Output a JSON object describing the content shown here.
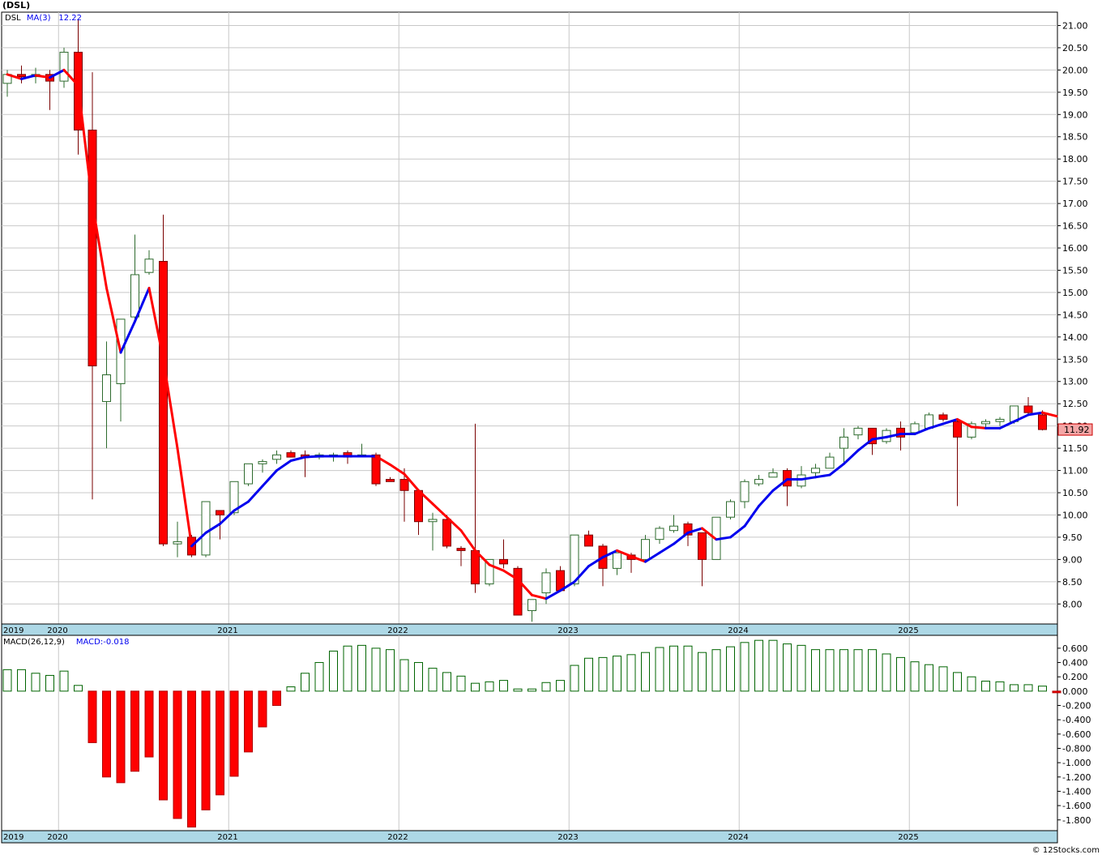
{
  "ticker": "(DSL)",
  "watermark": "© 12Stocks.com",
  "last_price_label": "11.92",
  "colors": {
    "up_body": "#ffffff",
    "up_outline": "#2e6b2e",
    "down_body": "#ff0000",
    "down_outline": "#7a0000",
    "ma_rising": "#0000ee",
    "ma_falling": "#ff0000",
    "axis_band": "#add8e6",
    "grid": "#c8c8c8",
    "macd_pos_outline": "#006400",
    "macd_neg": "#ff0000"
  },
  "chart_data": [
    {
      "type": "candlestick",
      "title": "DSL",
      "legend": [
        {
          "label": "DSL",
          "color": "#000000"
        },
        {
          "label": "MA(3)",
          "color": "#0000ee"
        },
        {
          "label": "12.22",
          "color": "#0000ee"
        }
      ],
      "year_labels": [
        "2019",
        "2020",
        "2021",
        "2022",
        "2023",
        "2024",
        "2025"
      ],
      "year_start_index": [
        -1,
        4,
        16,
        28,
        40,
        52,
        64
      ],
      "ylim": [
        7.55,
        21.3
      ],
      "y_ticks": [
        "21.00",
        "20.50",
        "20.00",
        "19.50",
        "19.00",
        "18.50",
        "18.00",
        "17.50",
        "17.00",
        "16.50",
        "16.00",
        "15.50",
        "15.00",
        "14.50",
        "14.00",
        "13.50",
        "13.00",
        "12.50",
        "12.00",
        "11.50",
        "11.00",
        "10.50",
        "10.00",
        "9.50",
        "9.00",
        "8.50",
        "8.00"
      ],
      "candles": [
        {
          "o": 19.7,
          "h": 20.0,
          "l": 19.4,
          "c": 19.9
        },
        {
          "o": 19.9,
          "h": 20.1,
          "l": 19.7,
          "c": 19.85
        },
        {
          "o": 19.85,
          "h": 20.05,
          "l": 19.7,
          "c": 19.9
        },
        {
          "o": 19.9,
          "h": 20.0,
          "l": 19.1,
          "c": 19.75
        },
        {
          "o": 19.75,
          "h": 20.5,
          "l": 19.6,
          "c": 20.4
        },
        {
          "o": 20.4,
          "h": 21.15,
          "l": 18.1,
          "c": 18.65
        },
        {
          "o": 18.65,
          "h": 19.95,
          "l": 10.35,
          "c": 13.35
        },
        {
          "o": 12.55,
          "h": 13.9,
          "l": 11.5,
          "c": 13.15
        },
        {
          "o": 12.95,
          "h": 14.4,
          "l": 12.1,
          "c": 14.4
        },
        {
          "o": 14.45,
          "h": 16.3,
          "l": 14.3,
          "c": 15.4
        },
        {
          "o": 15.45,
          "h": 15.95,
          "l": 15.4,
          "c": 15.75
        },
        {
          "o": 15.7,
          "h": 16.75,
          "l": 9.3,
          "c": 9.35
        },
        {
          "o": 9.35,
          "h": 9.85,
          "l": 9.05,
          "c": 9.4
        },
        {
          "o": 9.5,
          "h": 9.55,
          "l": 9.05,
          "c": 9.1
        },
        {
          "o": 9.1,
          "h": 10.3,
          "l": 9.05,
          "c": 10.3
        },
        {
          "o": 10.1,
          "h": 10.1,
          "l": 9.45,
          "c": 10.0
        },
        {
          "o": 10.05,
          "h": 10.75,
          "l": 10.0,
          "c": 10.75
        },
        {
          "o": 10.7,
          "h": 11.15,
          "l": 10.65,
          "c": 11.15
        },
        {
          "o": 11.15,
          "h": 11.25,
          "l": 10.95,
          "c": 11.2
        },
        {
          "o": 11.25,
          "h": 11.45,
          "l": 11.15,
          "c": 11.35
        },
        {
          "o": 11.4,
          "h": 11.45,
          "l": 11.3,
          "c": 11.3
        },
        {
          "o": 11.35,
          "h": 11.45,
          "l": 10.85,
          "c": 11.3
        },
        {
          "o": 11.3,
          "h": 11.4,
          "l": 11.25,
          "c": 11.35
        },
        {
          "o": 11.35,
          "h": 11.4,
          "l": 11.2,
          "c": 11.35
        },
        {
          "o": 11.4,
          "h": 11.45,
          "l": 11.15,
          "c": 11.3
        },
        {
          "o": 11.35,
          "h": 11.6,
          "l": 11.3,
          "c": 11.35
        },
        {
          "o": 11.35,
          "h": 11.4,
          "l": 10.65,
          "c": 10.7
        },
        {
          "o": 10.8,
          "h": 10.85,
          "l": 10.75,
          "c": 10.75
        },
        {
          "o": 10.8,
          "h": 11.05,
          "l": 9.85,
          "c": 10.55
        },
        {
          "o": 10.55,
          "h": 10.55,
          "l": 9.55,
          "c": 9.85
        },
        {
          "o": 9.85,
          "h": 10.05,
          "l": 9.2,
          "c": 9.9
        },
        {
          "o": 9.9,
          "h": 10.0,
          "l": 9.25,
          "c": 9.3
        },
        {
          "o": 9.25,
          "h": 9.3,
          "l": 8.85,
          "c": 9.2
        },
        {
          "o": 9.2,
          "h": 12.05,
          "l": 8.25,
          "c": 8.45
        },
        {
          "o": 8.45,
          "h": 9.0,
          "l": 8.4,
          "c": 9.0
        },
        {
          "o": 9.0,
          "h": 9.45,
          "l": 8.8,
          "c": 8.9
        },
        {
          "o": 8.8,
          "h": 8.85,
          "l": 7.75,
          "c": 7.75
        },
        {
          "o": 7.85,
          "h": 8.1,
          "l": 7.6,
          "c": 8.1
        },
        {
          "o": 8.25,
          "h": 8.8,
          "l": 8.0,
          "c": 8.7
        },
        {
          "o": 8.75,
          "h": 8.85,
          "l": 8.3,
          "c": 8.3
        },
        {
          "o": 8.45,
          "h": 9.55,
          "l": 8.4,
          "c": 9.55
        },
        {
          "o": 9.55,
          "h": 9.65,
          "l": 9.3,
          "c": 9.3
        },
        {
          "o": 9.3,
          "h": 9.35,
          "l": 8.4,
          "c": 8.8
        },
        {
          "o": 8.8,
          "h": 9.15,
          "l": 8.65,
          "c": 9.15
        },
        {
          "o": 9.1,
          "h": 9.15,
          "l": 8.7,
          "c": 9.0
        },
        {
          "o": 9.0,
          "h": 9.55,
          "l": 8.95,
          "c": 9.45
        },
        {
          "o": 9.45,
          "h": 9.75,
          "l": 9.35,
          "c": 9.7
        },
        {
          "o": 9.65,
          "h": 10.0,
          "l": 9.6,
          "c": 9.75
        },
        {
          "o": 9.8,
          "h": 9.85,
          "l": 9.3,
          "c": 9.55
        },
        {
          "o": 9.6,
          "h": 9.6,
          "l": 8.4,
          "c": 9.0
        },
        {
          "o": 9.0,
          "h": 9.95,
          "l": 9.0,
          "c": 9.95
        },
        {
          "o": 9.95,
          "h": 10.35,
          "l": 9.9,
          "c": 10.3
        },
        {
          "o": 10.3,
          "h": 10.8,
          "l": 10.15,
          "c": 10.75
        },
        {
          "o": 10.7,
          "h": 10.9,
          "l": 10.65,
          "c": 10.8
        },
        {
          "o": 10.85,
          "h": 11.05,
          "l": 10.85,
          "c": 10.95
        },
        {
          "o": 11.0,
          "h": 11.05,
          "l": 10.2,
          "c": 10.65
        },
        {
          "o": 10.65,
          "h": 11.1,
          "l": 10.6,
          "c": 10.9
        },
        {
          "o": 10.95,
          "h": 11.15,
          "l": 10.85,
          "c": 11.05
        },
        {
          "o": 11.05,
          "h": 11.4,
          "l": 11.05,
          "c": 11.3
        },
        {
          "o": 11.5,
          "h": 11.95,
          "l": 11.15,
          "c": 11.75
        },
        {
          "o": 11.8,
          "h": 12.0,
          "l": 11.7,
          "c": 11.95
        },
        {
          "o": 11.95,
          "h": 11.95,
          "l": 11.35,
          "c": 11.6
        },
        {
          "o": 11.65,
          "h": 11.95,
          "l": 11.6,
          "c": 11.9
        },
        {
          "o": 11.95,
          "h": 12.1,
          "l": 11.45,
          "c": 11.75
        },
        {
          "o": 11.85,
          "h": 12.1,
          "l": 11.8,
          "c": 12.05
        },
        {
          "o": 11.95,
          "h": 12.3,
          "l": 11.95,
          "c": 12.25
        },
        {
          "o": 12.25,
          "h": 12.3,
          "l": 12.1,
          "c": 12.15
        },
        {
          "o": 12.1,
          "h": 12.15,
          "l": 10.2,
          "c": 11.75
        },
        {
          "o": 11.75,
          "h": 12.1,
          "l": 11.7,
          "c": 12.05
        },
        {
          "o": 12.05,
          "h": 12.15,
          "l": 11.95,
          "c": 12.1
        },
        {
          "o": 12.1,
          "h": 12.2,
          "l": 12.0,
          "c": 12.15
        },
        {
          "o": 12.1,
          "h": 12.45,
          "l": 12.05,
          "c": 12.45
        },
        {
          "o": 12.45,
          "h": 12.65,
          "l": 12.25,
          "c": 12.3
        },
        {
          "o": 12.25,
          "h": 12.35,
          "l": 11.9,
          "c": 11.92
        }
      ],
      "ma3": [
        19.9,
        19.8,
        19.88,
        19.83,
        20.0,
        19.65,
        17.0,
        15.1,
        13.65,
        14.35,
        15.1,
        13.5,
        11.5,
        9.3,
        9.6,
        9.8,
        10.1,
        10.3,
        10.65,
        11.0,
        11.22,
        11.3,
        11.32,
        11.32,
        11.32,
        11.32,
        11.32,
        11.13,
        10.92,
        10.55,
        10.25,
        9.95,
        9.65,
        9.2,
        8.88,
        8.75,
        8.55,
        8.2,
        8.12,
        8.3,
        8.5,
        8.85,
        9.05,
        9.2,
        9.07,
        8.95,
        9.15,
        9.35,
        9.6,
        9.7,
        9.45,
        9.5,
        9.75,
        10.2,
        10.55,
        10.8,
        10.8,
        10.85,
        10.9,
        11.15,
        11.45,
        11.7,
        11.75,
        11.82,
        11.82,
        11.95,
        12.05,
        12.15,
        11.98,
        11.95,
        11.95,
        12.1,
        12.25,
        12.3,
        12.22
      ],
      "ma3_label": "12.22"
    },
    {
      "type": "bar",
      "title": "MACD(26,12,9)",
      "legend": [
        {
          "label": "MACD(26,12,9)",
          "color": "#000000"
        },
        {
          "label": "MACD:-0.018",
          "color": "#0000ee"
        }
      ],
      "ylim": [
        -1.95,
        0.78
      ],
      "y_ticks": [
        "0.600",
        "0.400",
        "0.200",
        "0.000",
        "-0.200",
        "-0.400",
        "-0.600",
        "-0.800",
        "-1.000",
        "-1.200",
        "-1.400",
        "-1.600",
        "-1.800"
      ],
      "values": [
        0.3,
        0.3,
        0.25,
        0.22,
        0.28,
        0.08,
        -0.72,
        -1.2,
        -1.28,
        -1.12,
        -0.92,
        -1.52,
        -1.78,
        -1.9,
        -1.66,
        -1.45,
        -1.19,
        -0.85,
        -0.5,
        -0.2,
        0.06,
        0.25,
        0.4,
        0.56,
        0.63,
        0.64,
        0.6,
        0.58,
        0.44,
        0.4,
        0.32,
        0.26,
        0.21,
        0.11,
        0.13,
        0.15,
        0.03,
        0.03,
        0.12,
        0.15,
        0.36,
        0.46,
        0.47,
        0.49,
        0.51,
        0.54,
        0.61,
        0.63,
        0.63,
        0.54,
        0.58,
        0.62,
        0.68,
        0.71,
        0.71,
        0.66,
        0.64,
        0.58,
        0.58,
        0.58,
        0.58,
        0.58,
        0.52,
        0.47,
        0.41,
        0.37,
        0.34,
        0.26,
        0.2,
        0.14,
        0.13,
        0.09,
        0.09,
        0.07,
        -0.018
      ]
    }
  ]
}
